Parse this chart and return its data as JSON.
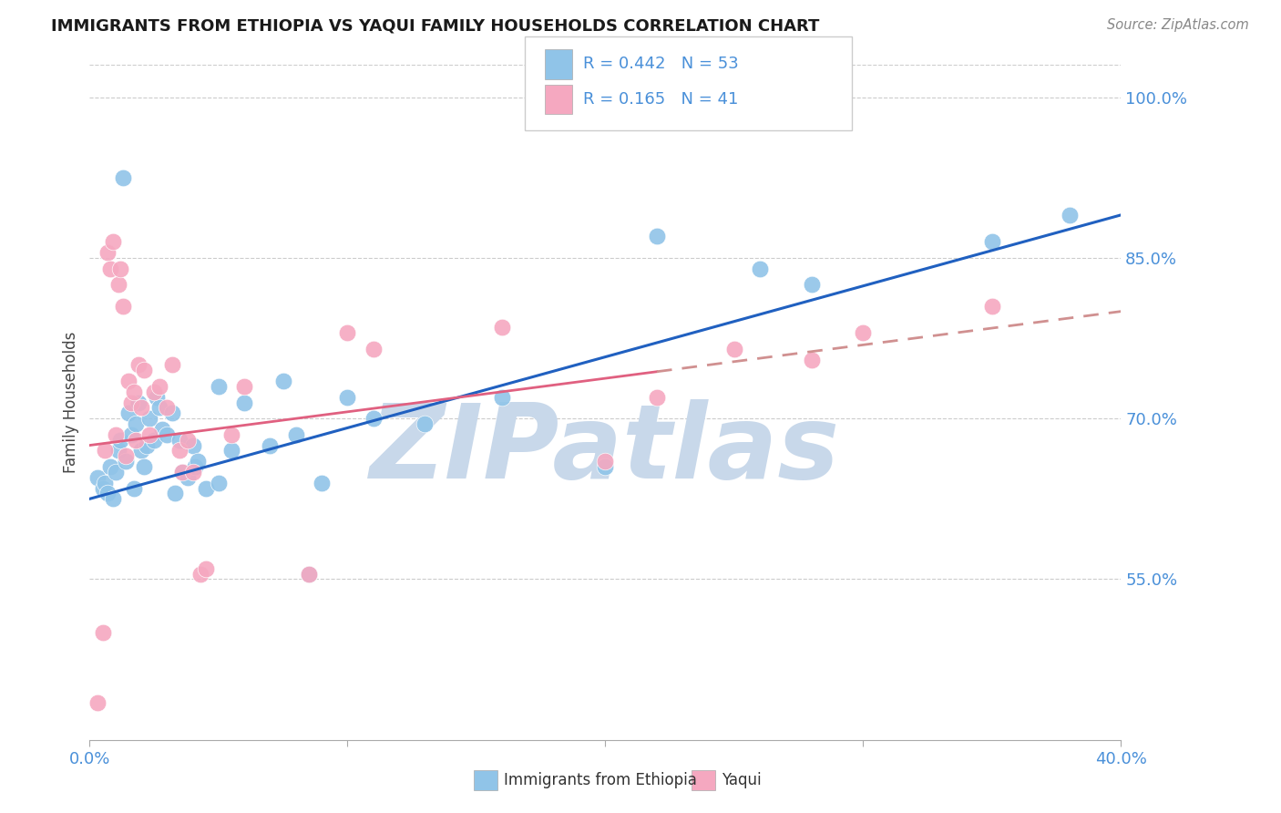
{
  "title": "IMMIGRANTS FROM ETHIOPIA VS YAQUI FAMILY HOUSEHOLDS CORRELATION CHART",
  "source": "Source: ZipAtlas.com",
  "ylabel": "Family Households",
  "xlim": [
    0.0,
    40.0
  ],
  "ylim": [
    40.0,
    103.0
  ],
  "ytick_vals": [
    55.0,
    70.0,
    85.0,
    100.0
  ],
  "xtick_vals": [
    0.0,
    10.0,
    20.0,
    30.0,
    40.0
  ],
  "legend_text_blue": "R = 0.442   N = 53",
  "legend_text_pink": "R = 0.165   N = 41",
  "blue_scatter_color": "#90c4e8",
  "pink_scatter_color": "#f5a8c0",
  "blue_line_color": "#2060c0",
  "pink_line_color": "#e06080",
  "pink_dash_color": "#d09090",
  "watermark_color": "#c8d8ea",
  "blue_scatter": [
    [
      0.3,
      64.5
    ],
    [
      0.5,
      63.5
    ],
    [
      0.6,
      64.0
    ],
    [
      0.7,
      63.0
    ],
    [
      0.8,
      65.5
    ],
    [
      0.9,
      62.5
    ],
    [
      1.0,
      65.0
    ],
    [
      1.1,
      67.0
    ],
    [
      1.2,
      68.0
    ],
    [
      1.3,
      92.5
    ],
    [
      1.4,
      66.0
    ],
    [
      1.5,
      70.5
    ],
    [
      1.6,
      68.5
    ],
    [
      1.7,
      63.5
    ],
    [
      1.8,
      69.5
    ],
    [
      1.9,
      71.5
    ],
    [
      2.0,
      67.0
    ],
    [
      2.1,
      65.5
    ],
    [
      2.2,
      67.5
    ],
    [
      2.3,
      70.0
    ],
    [
      2.5,
      68.0
    ],
    [
      2.6,
      72.0
    ],
    [
      2.7,
      71.0
    ],
    [
      2.8,
      69.0
    ],
    [
      3.0,
      68.5
    ],
    [
      3.2,
      70.5
    ],
    [
      3.3,
      63.0
    ],
    [
      3.5,
      68.0
    ],
    [
      3.6,
      65.0
    ],
    [
      3.8,
      64.5
    ],
    [
      4.0,
      67.5
    ],
    [
      4.1,
      65.5
    ],
    [
      4.2,
      66.0
    ],
    [
      4.5,
      63.5
    ],
    [
      5.0,
      64.0
    ],
    [
      5.0,
      73.0
    ],
    [
      5.5,
      67.0
    ],
    [
      6.0,
      71.5
    ],
    [
      7.0,
      67.5
    ],
    [
      7.5,
      73.5
    ],
    [
      8.0,
      68.5
    ],
    [
      8.5,
      55.5
    ],
    [
      9.0,
      64.0
    ],
    [
      10.0,
      72.0
    ],
    [
      11.0,
      70.0
    ],
    [
      13.0,
      69.5
    ],
    [
      16.0,
      72.0
    ],
    [
      20.0,
      65.5
    ],
    [
      22.0,
      87.0
    ],
    [
      26.0,
      84.0
    ],
    [
      28.0,
      82.5
    ],
    [
      35.0,
      86.5
    ],
    [
      38.0,
      89.0
    ]
  ],
  "pink_scatter": [
    [
      0.3,
      43.5
    ],
    [
      0.5,
      50.0
    ],
    [
      0.6,
      67.0
    ],
    [
      0.7,
      85.5
    ],
    [
      0.8,
      84.0
    ],
    [
      0.9,
      86.5
    ],
    [
      1.0,
      68.5
    ],
    [
      1.1,
      82.5
    ],
    [
      1.2,
      84.0
    ],
    [
      1.3,
      80.5
    ],
    [
      1.4,
      66.5
    ],
    [
      1.5,
      73.5
    ],
    [
      1.6,
      71.5
    ],
    [
      1.7,
      72.5
    ],
    [
      1.8,
      68.0
    ],
    [
      1.9,
      75.0
    ],
    [
      2.0,
      71.0
    ],
    [
      2.1,
      74.5
    ],
    [
      2.3,
      68.5
    ],
    [
      2.5,
      72.5
    ],
    [
      2.7,
      73.0
    ],
    [
      3.0,
      71.0
    ],
    [
      3.2,
      75.0
    ],
    [
      3.5,
      67.0
    ],
    [
      3.6,
      65.0
    ],
    [
      3.8,
      68.0
    ],
    [
      4.0,
      65.0
    ],
    [
      4.3,
      55.5
    ],
    [
      4.5,
      56.0
    ],
    [
      5.5,
      68.5
    ],
    [
      6.0,
      73.0
    ],
    [
      8.5,
      55.5
    ],
    [
      10.0,
      78.0
    ],
    [
      11.0,
      76.5
    ],
    [
      16.0,
      78.5
    ],
    [
      20.0,
      66.0
    ],
    [
      22.0,
      72.0
    ],
    [
      25.0,
      76.5
    ],
    [
      28.0,
      75.5
    ],
    [
      30.0,
      78.0
    ],
    [
      35.0,
      80.5
    ]
  ],
  "blue_trend_x": [
    0.0,
    40.0
  ],
  "blue_trend_y": [
    62.5,
    89.0
  ],
  "pink_trend_x": [
    0.0,
    40.0
  ],
  "pink_trend_y": [
    67.5,
    80.0
  ],
  "pink_solid_end_x": 22.0
}
